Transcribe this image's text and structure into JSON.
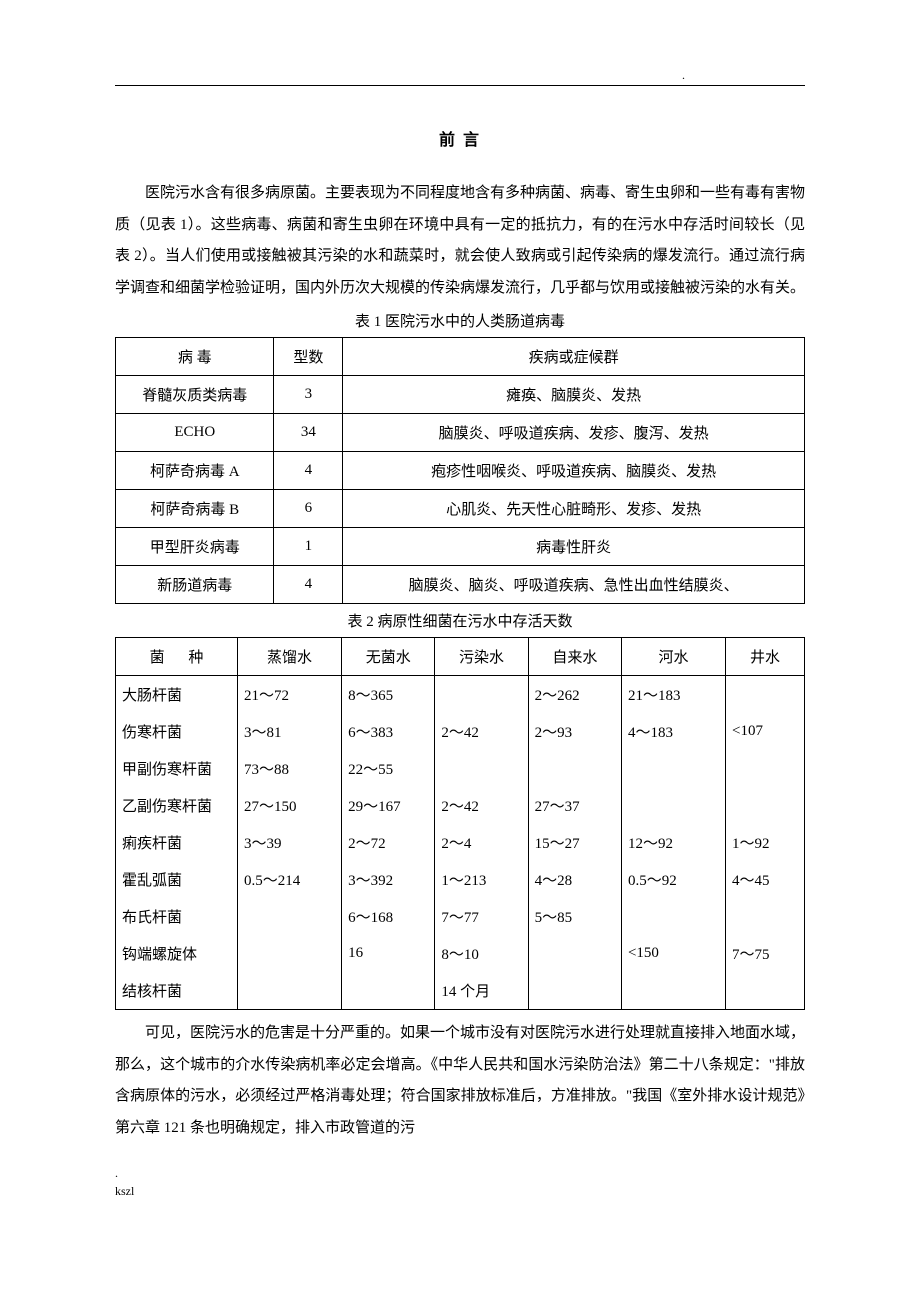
{
  "title": "前 言",
  "para1": "医院污水含有很多病原菌。主要表现为不同程度地含有多种病菌、病毒、寄生虫卵和一些有毒有害物质（见表 1）。这些病毒、病菌和寄生虫卵在环境中具有一定的抵抗力，有的在污水中存活时间较长（见表 2）。当人们使用或接触被其污染的水和蔬菜时，就会使人致病或引起传染病的爆发流行。通过流行病学调查和细菌学检验证明，国内外历次大规模的传染病爆发流行，几乎都与饮用或接触被污染的水有关。",
  "table1": {
    "caption": "表 1   医院污水中的人类肠道病毒",
    "headers": {
      "c1": "病     毒",
      "c2": "型数",
      "c3": "疾病或症候群"
    },
    "rows": [
      {
        "c1": "脊髓灰质类病毒",
        "c2": "3",
        "c3": "瘫痪、脑膜炎、发热"
      },
      {
        "c1": "ECHO",
        "c2": "34",
        "c3": "脑膜炎、呼吸道疾病、发疹、腹泻、发热"
      },
      {
        "c1": "柯萨奇病毒 A",
        "c2": "4",
        "c3": "疱疹性咽喉炎、呼吸道疾病、脑膜炎、发热"
      },
      {
        "c1": "柯萨奇病毒 B",
        "c2": "6",
        "c3": "心肌炎、先天性心脏畸形、发疹、发热"
      },
      {
        "c1": "甲型肝炎病毒",
        "c2": "1",
        "c3": "病毒性肝炎"
      },
      {
        "c1": "新肠道病毒",
        "c2": "4",
        "c3": "脑膜炎、脑炎、呼吸道疾病、急性出血性结膜炎、"
      }
    ]
  },
  "table2": {
    "caption": "表 2   病原性细菌在污水中存活天数",
    "headers": {
      "c1": "菌    种",
      "c2": "蒸馏水",
      "c3": "无菌水",
      "c4": "污染水",
      "c5": "自来水",
      "c6": "河水",
      "c7": "井水"
    },
    "rows": [
      {
        "c1": "大肠杆菌",
        "c2": "21～72",
        "c3": "8～365",
        "c4": "",
        "c5": "2～262",
        "c6": "21～183",
        "c7": ""
      },
      {
        "c1": "伤寒杆菌",
        "c2": "3～81",
        "c3": "6～383",
        "c4": "2～42",
        "c5": "2～93",
        "c6": "4～183",
        "c7": "<107"
      },
      {
        "c1": "甲副伤寒杆菌",
        "c2": "73～88",
        "c3": "22～55",
        "c4": "",
        "c5": "",
        "c6": "",
        "c7": ""
      },
      {
        "c1": "乙副伤寒杆菌",
        "c2": "27～150",
        "c3": "29～167",
        "c4": "2～42",
        "c5": "27～37",
        "c6": "",
        "c7": ""
      },
      {
        "c1": "痢疾杆菌",
        "c2": "3～39",
        "c3": "2～72",
        "c4": "2～4",
        "c5": "15～27",
        "c6": "12～92",
        "c7": "1～92"
      },
      {
        "c1": "霍乱弧菌",
        "c2": "0.5～214",
        "c3": "3～392",
        "c4": "1～213",
        "c5": "4～28",
        "c6": "0.5～92",
        "c7": "4～45"
      },
      {
        "c1": "布氏杆菌",
        "c2": "",
        "c3": "6～168",
        "c4": "7～77",
        "c5": "5～85",
        "c6": "",
        "c7": ""
      },
      {
        "c1": "钩端螺旋体",
        "c2": "",
        "c3": "16",
        "c4": "8～10",
        "c5": "",
        "c6": "<150",
        "c7": "7～75"
      },
      {
        "c1": "结核杆菌",
        "c2": "",
        "c3": "",
        "c4": "14 个月",
        "c5": "",
        "c6": "",
        "c7": ""
      }
    ]
  },
  "para2": "可见，医院污水的危害是十分严重的。如果一个城市没有对医院污水进行处理就直接排入地面水域，那么，这个城市的介水传染病机率必定会增高。《中华人民共和国水污染防治法》第二十八条规定：\"排放含病原体的污水，必须经过严格消毒处理；符合国家排放标准后，方准排放。\"我国《室外排水设计规范》第六章 121 条也明确规定，排入市政管道的污",
  "footer1": ".",
  "footer2": "kszl"
}
